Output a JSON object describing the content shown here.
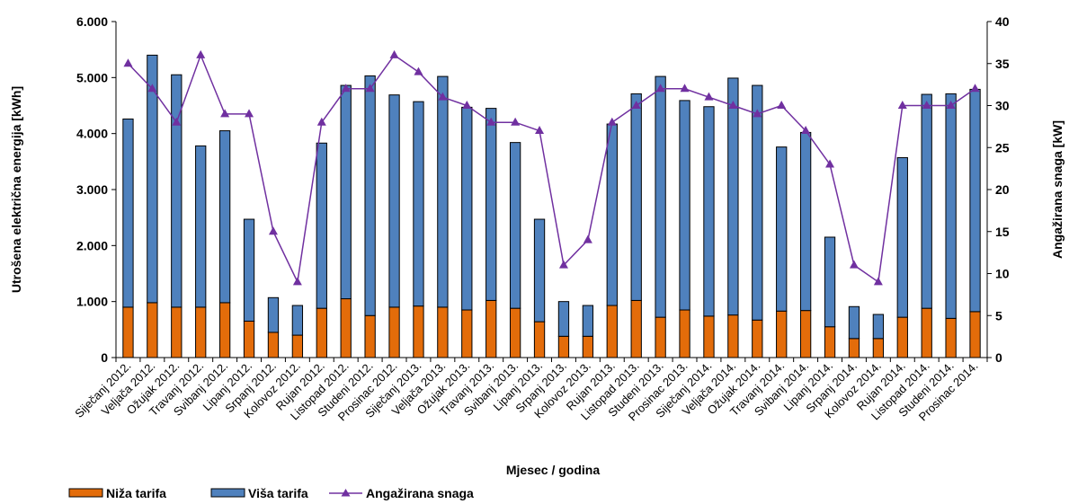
{
  "chart_data": {
    "type": "bar",
    "stacked": true,
    "categories": [
      "Siječanj 2012.",
      "Veljača 2012.",
      "Ožujak 2012.",
      "Travanj 2012.",
      "Svibanj 2012.",
      "Lipanj 2012.",
      "Srpanj 2012.",
      "Kolovoz 2012.",
      "Rujan 2012.",
      "Listopad 2012.",
      "Studeni 2012.",
      "Prosinac 2012.",
      "Siječanj 2013.",
      "Veljača 2013.",
      "Ožujak 2013.",
      "Travanj 2013.",
      "Svibanj 2013.",
      "Lipanj 2013.",
      "Srpanj 2013.",
      "Kolovoz 2013.",
      "Rujan 2013.",
      "Listopad 2013.",
      "Studeni 2013.",
      "Prosinac 2013.",
      "Siječanj 2014.",
      "Veljača 2014.",
      "Ožujak 2014.",
      "Travanj 2014.",
      "Svibanj 2014.",
      "Lipanj 2014.",
      "Srpanj 2014.",
      "Kolovoz 2014.",
      "Rujan 2014.",
      "Listopad 2014.",
      "Studeni 2014.",
      "Prosinac 2014."
    ],
    "series": [
      {
        "name": "Niža tarifa",
        "type": "bar",
        "axis": "left",
        "color": "#E36C0A",
        "values": [
          900,
          980,
          900,
          900,
          980,
          650,
          450,
          400,
          880,
          1050,
          750,
          900,
          920,
          900,
          850,
          1020,
          880,
          640,
          380,
          380,
          930,
          1020,
          720,
          850,
          740,
          760,
          670,
          830,
          840,
          550,
          340,
          340,
          720,
          880,
          700,
          820
        ]
      },
      {
        "name": "Viša tarifa",
        "type": "bar",
        "axis": "left",
        "color": "#4F81BD",
        "values": [
          3360,
          4420,
          4150,
          2880,
          3070,
          1820,
          620,
          530,
          2950,
          3810,
          4280,
          3790,
          3650,
          4120,
          3620,
          3430,
          2960,
          1830,
          620,
          550,
          3240,
          3690,
          4300,
          3740,
          3740,
          4230,
          4190,
          2930,
          3180,
          1600,
          570,
          430,
          2850,
          3820,
          4010,
          3970
        ]
      },
      {
        "name": "Angažirana snaga",
        "type": "line",
        "axis": "right",
        "color": "#7030A0",
        "values": [
          35,
          32,
          28,
          36,
          29,
          29,
          15,
          9,
          28,
          32,
          32,
          36,
          34,
          31,
          30,
          28,
          28,
          27,
          11,
          14,
          28,
          30,
          32,
          32,
          31,
          30,
          29,
          30,
          27,
          23,
          11,
          9,
          30,
          30,
          30,
          32
        ]
      }
    ],
    "y_left": {
      "label": "Utrošena električna energija [kWh]",
      "ylim": [
        0,
        6000
      ],
      "ticks": [
        "0",
        "1.000",
        "2.000",
        "3.000",
        "4.000",
        "5.000",
        "6.000"
      ]
    },
    "y_right": {
      "label": "Angažirana snaga [kW]",
      "ylim": [
        0,
        40
      ],
      "ticks": [
        "0",
        "5",
        "10",
        "15",
        "20",
        "25",
        "30",
        "35",
        "40"
      ]
    },
    "xlabel": "Mjesec / godina",
    "legend_position": "bottom-left",
    "grid": false
  }
}
